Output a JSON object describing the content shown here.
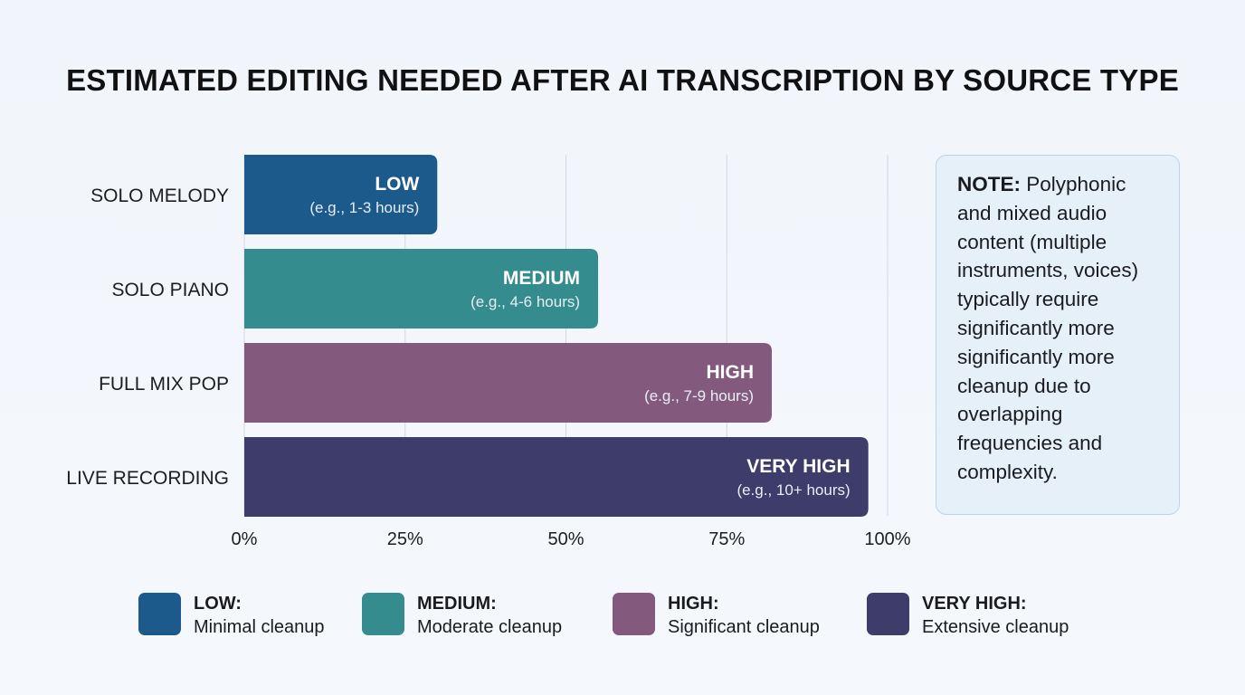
{
  "chart_data": {
    "type": "bar",
    "orientation": "horizontal",
    "title": "ESTIMATED EDITING NEEDED AFTER AI TRANSCRIPTION BY SOURCE TYPE",
    "categories": [
      "SOLO MELODY",
      "SOLO PIANO",
      "FULL MIX POP",
      "LIVE RECORDING"
    ],
    "values": [
      30,
      55,
      82,
      97
    ],
    "bar_labels": [
      "LOW",
      "MEDIUM",
      "HIGH",
      "VERY HIGH"
    ],
    "bar_details": [
      "(e.g., 1-3 hours)",
      "(e.g., 4-6 hours)",
      "(e.g., 7-9 hours)",
      "(e.g., 10+ hours)"
    ],
    "bar_colors": [
      "#1c5a8c",
      "#348c8e",
      "#835a7d",
      "#3d3c6b"
    ],
    "x_ticks": [
      "0%",
      "25%",
      "50%",
      "75%",
      "100%"
    ],
    "xlim": [
      0,
      100
    ],
    "grid": true,
    "legend_placement": "bottom"
  },
  "note": {
    "heading": "NOTE:",
    "text": "Polyphonic and mixed audio content (multiple instruments, voices) typically require significantly more significantly more cleanup due to overlapping frequencies and complexity."
  },
  "legend": [
    {
      "level": "LOW:",
      "desc": "Minimal cleanup",
      "color": "#1c5a8c"
    },
    {
      "level": "MEDIUM:",
      "desc": "Moderate cleanup",
      "color": "#348c8e"
    },
    {
      "level": "HIGH:",
      "desc": "Significant cleanup",
      "color": "#835a7d"
    },
    {
      "level": "VERY HIGH:",
      "desc": "Extensive cleanup",
      "color": "#3d3c6b"
    }
  ]
}
